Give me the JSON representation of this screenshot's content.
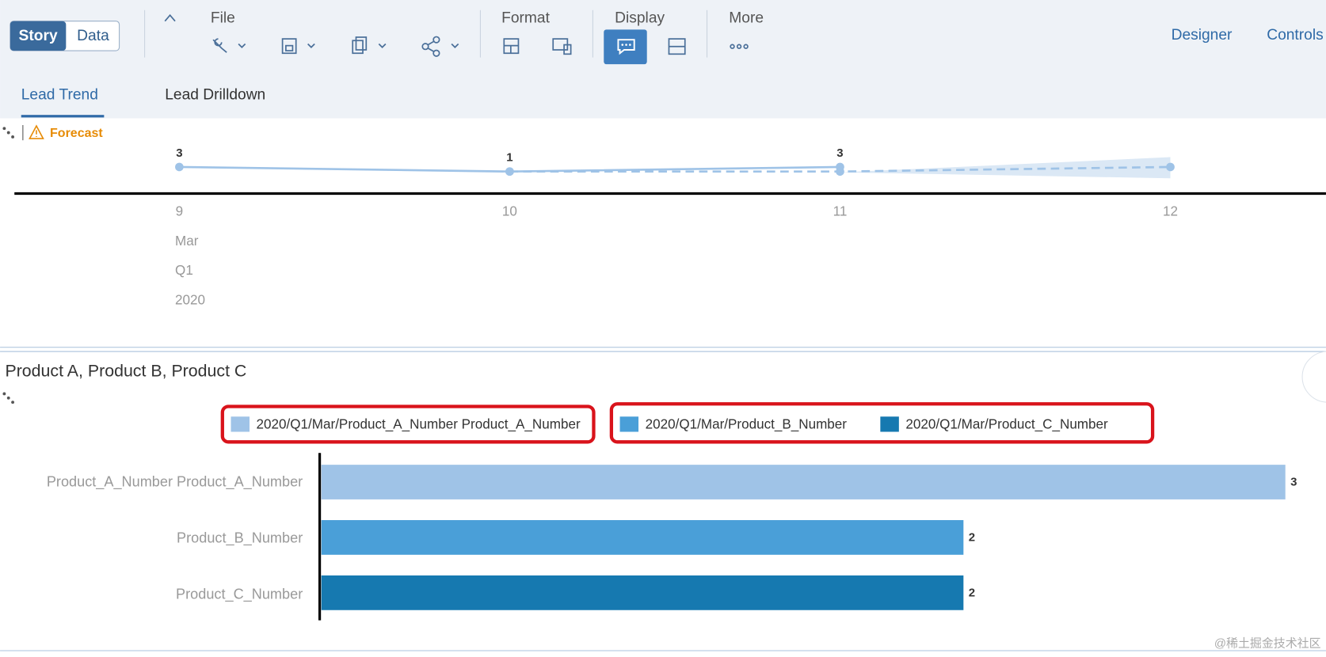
{
  "toolbar": {
    "view_tabs": [
      "Story",
      "Data"
    ],
    "groups": [
      "File",
      "Format",
      "Display",
      "More"
    ],
    "right_buttons": [
      "Designer",
      "Controls"
    ]
  },
  "page_tabs": [
    "Lead Trend",
    "Lead Drilldown"
  ],
  "forecast_label": "Forecast",
  "chart_data": [
    {
      "type": "line",
      "categories": [
        "9",
        "10",
        "11",
        "12"
      ],
      "x_levels": [
        "Mar",
        "Q1",
        "2020"
      ],
      "series": [
        {
          "color": "#9fc3e7",
          "data_labels": true,
          "values": [
            3,
            1,
            3,
            null
          ]
        },
        {
          "color": "#9fc3e7",
          "style": "dashed",
          "values": [
            null,
            1,
            1,
            3
          ]
        }
      ]
    },
    {
      "type": "bar",
      "orientation": "horizontal",
      "title": "Product A, Product B, Product C",
      "categories": [
        "Product_A_Number Product_A_Number",
        "Product_B_Number",
        "Product_C_Number"
      ],
      "series": [
        {
          "name": "2020/Q1/Mar/Product_A_Number Product_A_Number",
          "color": "#9fc3e7",
          "values": [
            3,
            null,
            null
          ]
        },
        {
          "name": "2020/Q1/Mar/Product_B_Number",
          "color": "#4a9fd8",
          "values": [
            null,
            2,
            null
          ]
        },
        {
          "name": "2020/Q1/Mar/Product_C_Number",
          "color": "#1679b0",
          "values": [
            null,
            null,
            2
          ]
        }
      ],
      "xlim": [
        0,
        3
      ]
    }
  ],
  "watermark": "@稀土掘金技术社区"
}
